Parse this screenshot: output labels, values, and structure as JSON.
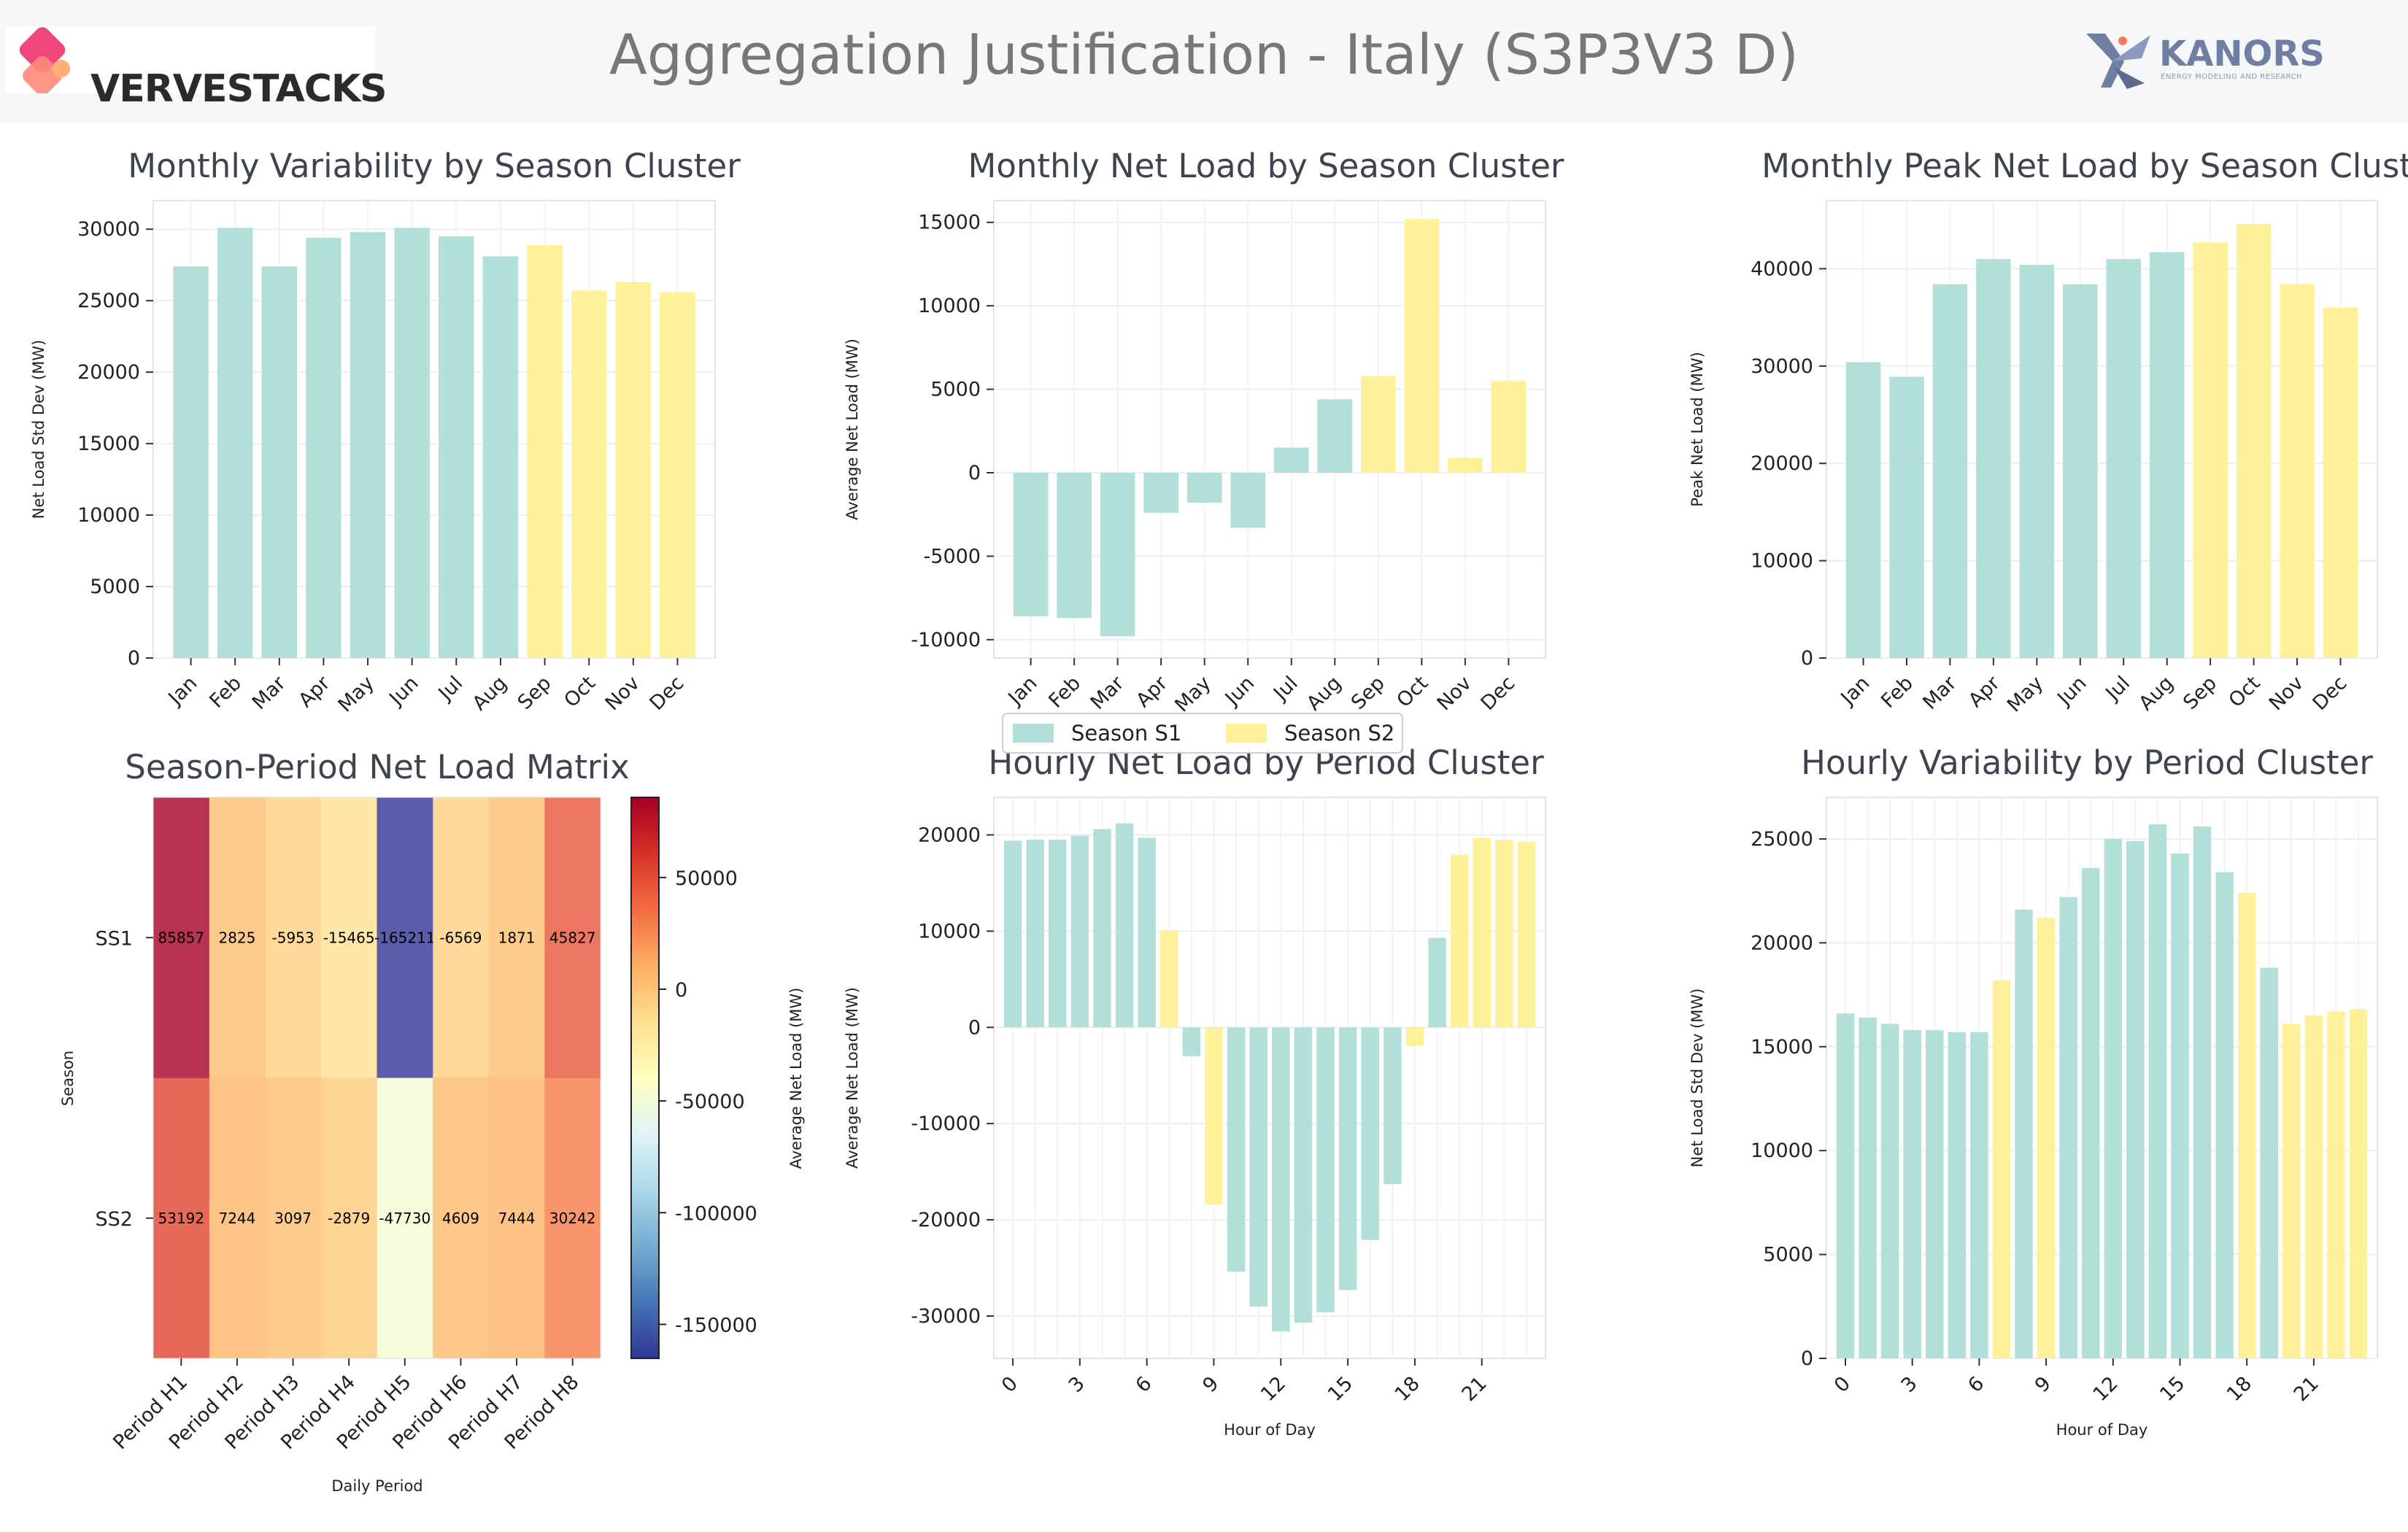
{
  "header": {
    "brand": "VERVESTACKS",
    "title": "Aggregation Justification - Italy (S3P3V3 D)",
    "partner": "KANORS",
    "partner_sub": "ENERGY MODELING AND RESEARCH"
  },
  "colors": {
    "s1": "#b2e0d8",
    "s2": "#fff09a"
  },
  "legend": {
    "items": [
      "Season S1",
      "Season S2"
    ]
  },
  "chart_data": [
    {
      "id": "monthly_std",
      "type": "bar",
      "title": "Monthly Variability by Season Cluster",
      "xlabel": "",
      "ylabel": "Net Load Std Dev (MW)",
      "categories": [
        "Jan",
        "Feb",
        "Mar",
        "Apr",
        "May",
        "Jun",
        "Jul",
        "Aug",
        "Sep",
        "Oct",
        "Nov",
        "Dec"
      ],
      "values": [
        27400,
        30100,
        27400,
        29400,
        29800,
        30100,
        29500,
        28100,
        28900,
        25700,
        26300,
        25600
      ],
      "clusters": [
        1,
        1,
        1,
        1,
        1,
        1,
        1,
        1,
        2,
        2,
        2,
        2
      ],
      "ylim": [
        0,
        32000
      ],
      "yticks": [
        0,
        5000,
        10000,
        15000,
        20000,
        25000,
        30000
      ]
    },
    {
      "id": "monthly_net",
      "type": "bar",
      "title": "Monthly Net Load by Season Cluster",
      "xlabel": "",
      "ylabel": "Average Net Load (MW)",
      "categories": [
        "Jan",
        "Feb",
        "Mar",
        "Apr",
        "May",
        "Jun",
        "Jul",
        "Aug",
        "Sep",
        "Oct",
        "Nov",
        "Dec"
      ],
      "values": [
        -8600,
        -8700,
        -9800,
        -2400,
        -1800,
        -3300,
        1500,
        4400,
        5800,
        15200,
        900,
        5500
      ],
      "clusters": [
        1,
        1,
        1,
        1,
        1,
        1,
        1,
        1,
        2,
        2,
        2,
        2
      ],
      "ylim": [
        -11100,
        16300
      ],
      "yticks": [
        -10000,
        -5000,
        0,
        5000,
        10000,
        15000
      ]
    },
    {
      "id": "monthly_peak",
      "type": "bar",
      "title": "Monthly Peak Net Load by Season Clust",
      "xlabel": "",
      "ylabel": "Peak Net Load (MW)",
      "categories": [
        "Jan",
        "Feb",
        "Mar",
        "Apr",
        "May",
        "Jun",
        "Jul",
        "Aug",
        "Sep",
        "Oct",
        "Nov",
        "Dec"
      ],
      "values": [
        30400,
        28900,
        38400,
        41000,
        40400,
        38400,
        41000,
        41700,
        42700,
        44600,
        38400,
        36000
      ],
      "clusters": [
        1,
        1,
        1,
        1,
        1,
        1,
        1,
        1,
        2,
        2,
        2,
        2
      ],
      "ylim": [
        0,
        47000
      ],
      "yticks": [
        0,
        10000,
        20000,
        30000,
        40000
      ]
    },
    {
      "id": "heatmap",
      "type": "heatmap",
      "title": "Season-Period Net Load Matrix",
      "xlabel": "Daily Period",
      "ylabel": "Season",
      "colorbar_label": "Average Net Load (MW)",
      "x": [
        "Period H1",
        "Period H2",
        "Period H3",
        "Period H4",
        "Period H5",
        "Period H6",
        "Period H7",
        "Period H8"
      ],
      "y": [
        "SS1",
        "SS2"
      ],
      "values": [
        [
          85857,
          2825,
          -5953,
          -15465,
          -165211,
          -6569,
          1871,
          45827
        ],
        [
          53192,
          7244,
          3097,
          -2879,
          -47730,
          4609,
          7444,
          30242
        ]
      ],
      "clim": [
        -165211,
        85857
      ],
      "cticks": [
        50000,
        0,
        -50000,
        -100000,
        -150000
      ]
    },
    {
      "id": "hourly_net",
      "type": "bar",
      "title": "Hourly Net Load by Period Cluster",
      "xlabel": "Hour of Day",
      "ylabel": "Average Net Load (MW)",
      "x": [
        0,
        1,
        2,
        3,
        4,
        5,
        6,
        7,
        8,
        9,
        10,
        11,
        12,
        13,
        14,
        15,
        16,
        17,
        18,
        19,
        20,
        21,
        22,
        23
      ],
      "values": [
        19400,
        19500,
        19500,
        19900,
        20600,
        21200,
        19700,
        10100,
        -3000,
        -18400,
        -25400,
        -29000,
        -31600,
        -30700,
        -29600,
        -27300,
        -22100,
        -16300,
        -1900,
        9300,
        17900,
        19700,
        19500,
        19300
      ],
      "clusters": [
        1,
        1,
        1,
        1,
        1,
        1,
        1,
        2,
        1,
        2,
        1,
        1,
        1,
        1,
        1,
        1,
        1,
        1,
        2,
        1,
        2,
        2,
        2,
        2
      ],
      "ylim": [
        -34400,
        23900
      ],
      "yticks": [
        -30000,
        -20000,
        -10000,
        0,
        10000,
        20000
      ],
      "xticks": [
        0,
        3,
        6,
        9,
        12,
        15,
        18,
        21
      ]
    },
    {
      "id": "hourly_std",
      "type": "bar",
      "title": "Hourly Variability by Period Cluster",
      "xlabel": "Hour of Day",
      "ylabel": "Net Load Std Dev (MW)",
      "x": [
        0,
        1,
        2,
        3,
        4,
        5,
        6,
        7,
        8,
        9,
        10,
        11,
        12,
        13,
        14,
        15,
        16,
        17,
        18,
        19,
        20,
        21,
        22,
        23
      ],
      "values": [
        16600,
        16400,
        16100,
        15800,
        15800,
        15700,
        15700,
        18200,
        21600,
        21200,
        22200,
        23600,
        25000,
        24900,
        25700,
        24300,
        25600,
        23400,
        22400,
        18800,
        16100,
        16500,
        16700,
        16800
      ],
      "clusters": [
        1,
        1,
        1,
        1,
        1,
        1,
        1,
        2,
        1,
        2,
        1,
        1,
        1,
        1,
        1,
        1,
        1,
        1,
        2,
        1,
        2,
        2,
        2,
        2
      ],
      "ylim": [
        0,
        27000
      ],
      "yticks": [
        0,
        5000,
        10000,
        15000,
        20000,
        25000
      ],
      "xticks": [
        0,
        3,
        6,
        9,
        12,
        15,
        18,
        21
      ]
    }
  ]
}
